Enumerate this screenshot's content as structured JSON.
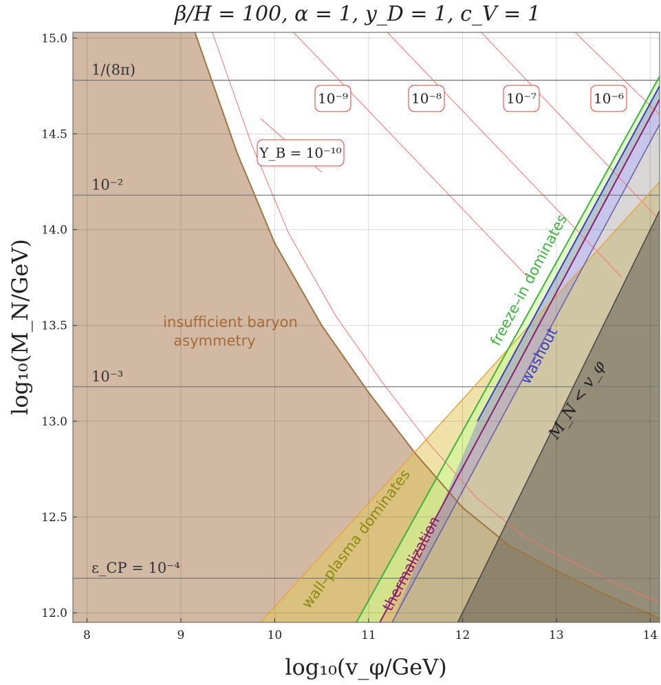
{
  "chart_data": {
    "type": "area",
    "title": "β/H = 100, α = 1, y_D = 1, c_V = 1",
    "xlabel": "log₁₀(v_φ/GeV)",
    "ylabel": "log₁₀(M_N/GeV)",
    "xlim": [
      7.85,
      14.1
    ],
    "ylim": [
      11.95,
      15.03
    ],
    "grid": true,
    "x_ticks": [
      "8",
      "9",
      "10",
      "11",
      "12",
      "13",
      "14"
    ],
    "y_ticks": [
      "12.0",
      "12.5",
      "13.0",
      "13.5",
      "14.0",
      "14.5",
      "15.0"
    ],
    "colors": {
      "insufficient": "#c9ad93",
      "boundary": "#a0743f",
      "wall": "#e2c85f",
      "wall_edge": "#e8a640",
      "freeze": "#3cb43c",
      "washout": "#3a3ad0",
      "thermal": "#8c1a72",
      "mn_lt_v": "#6e6a64",
      "yb": "#ff7070",
      "eps": "#7a7a7a"
    },
    "epsilon_cp_lines": [
      {
        "label": "1/(8π)",
        "y": 14.78
      },
      {
        "label": "10⁻²",
        "y": 14.18
      },
      {
        "label": "10⁻³",
        "y": 13.18
      },
      {
        "label": "ε_CP = 10⁻⁴",
        "y": 12.18
      }
    ],
    "yb_labels": [
      "Y_B = 10⁻¹⁰",
      "10⁻⁹",
      "10⁻⁸",
      "10⁻⁷",
      "10⁻⁶"
    ],
    "regions": {
      "insufficient_label_line1": "insufficient baryon",
      "insufficient_label_line2": "asymmetry",
      "wall_label": "wall–plasma dominates",
      "freeze_label": "freeze–in dominates",
      "thermal_label": "thermalization",
      "washout_label": "washout",
      "mn_label": "M_N < v_φ"
    },
    "insufficient_boundary": [
      [
        9.15,
        15.03
      ],
      [
        9.6,
        14.4
      ],
      [
        10.0,
        13.93
      ],
      [
        10.5,
        13.5
      ],
      [
        11.0,
        13.15
      ],
      [
        11.5,
        12.83
      ],
      [
        12.0,
        12.55
      ],
      [
        12.5,
        12.35
      ],
      [
        13.0,
        12.22
      ],
      [
        13.5,
        12.1
      ],
      [
        14.1,
        11.97
      ]
    ],
    "wall_upper": [
      [
        9.85,
        11.95
      ],
      [
        14.1,
        14.25
      ]
    ],
    "freeze_line": [
      [
        10.87,
        11.95
      ],
      [
        14.1,
        14.8
      ]
    ],
    "thermal_line": [
      [
        11.12,
        11.95
      ],
      [
        14.1,
        14.68
      ]
    ],
    "washout_upper": [
      [
        12.16,
        13.0
      ],
      [
        14.1,
        14.75
      ]
    ],
    "washout_lower": [
      [
        11.25,
        11.95
      ],
      [
        14.1,
        14.55
      ]
    ],
    "mn_lt_v_edge": [
      [
        11.95,
        11.95
      ],
      [
        14.1,
        14.1
      ]
    ],
    "yb_lines": [
      [
        [
          9.85,
          14.58
        ],
        [
          10.5,
          14.3
        ]
      ],
      [
        [
          10.2,
          15.03
        ],
        [
          12.7,
          13.75
        ]
      ],
      [
        [
          11.2,
          15.03
        ],
        [
          13.7,
          13.75
        ]
      ],
      [
        [
          12.2,
          15.03
        ],
        [
          14.1,
          14.05
        ]
      ],
      [
        [
          13.2,
          15.03
        ],
        [
          14.1,
          14.6
        ]
      ]
    ]
  }
}
